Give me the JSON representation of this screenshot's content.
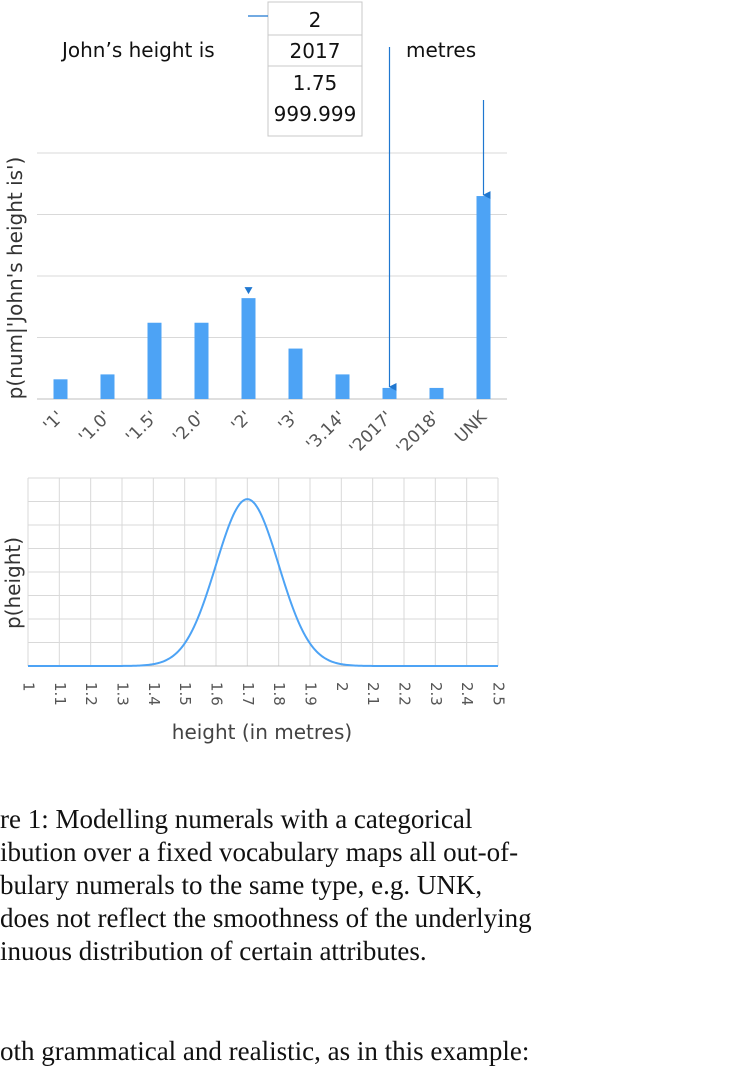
{
  "figure": {
    "sentence_prefix": "John’s height is",
    "sentence_suffix": "metres",
    "candidates": [
      "2",
      "2017",
      "1.75",
      "999.999"
    ]
  },
  "chart_data": [
    {
      "type": "bar",
      "categories": [
        "'1'",
        "'1.0'",
        "'1.5'",
        "'2.0'",
        "'2'",
        "'3'",
        "'3.14'",
        "'2017'",
        "'2018'",
        "UNK"
      ],
      "values": [
        0.16,
        0.2,
        0.62,
        0.62,
        0.82,
        0.41,
        0.2,
        0.09,
        0.09,
        1.65
      ],
      "ylabel": "p(num|'John's height is')",
      "ylim": [
        0,
        2
      ],
      "grid": true,
      "color": "#4da3f5",
      "marker_color": "#1f77d0",
      "pointers": [
        {
          "from": "2",
          "to_category": "'2'"
        },
        {
          "from": "2017",
          "to_category": "'2017'"
        },
        {
          "from": "1.75",
          "to_category": "UNK"
        }
      ]
    },
    {
      "type": "line",
      "x_ticks": [
        "1",
        "1.1",
        "1.2",
        "1.3",
        "1.4",
        "1.5",
        "1.6",
        "1.7",
        "1.8",
        "1.9",
        "2",
        "2.1",
        "2.2",
        "2.3",
        "2.4",
        "2.5"
      ],
      "distribution": {
        "kind": "gaussian",
        "mean": 1.7,
        "std": 0.1
      },
      "xlim": [
        1,
        2.5
      ],
      "xlabel": "height (in metres)",
      "ylabel": "p(height)",
      "grid": true,
      "color": "#4da3f5"
    }
  ],
  "caption": {
    "lines": [
      "re 1: Modelling numerals with a categorical",
      "ibution over a fixed vocabulary maps all out-of-",
      "bulary numerals to the same type, e.g. UNK,",
      "does not reflect the smoothness of the underlying",
      "inuous distribution of certain attributes."
    ]
  },
  "body_text": "oth grammatical and realistic, as in this example:"
}
